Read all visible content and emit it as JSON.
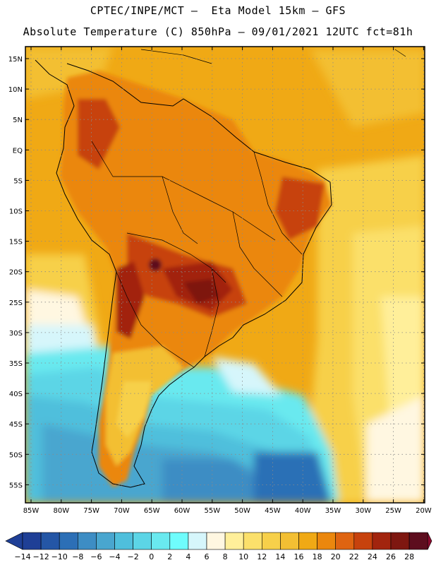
{
  "header": {
    "line1": "CPTEC/INPE/MCT –  Eta Model 15km – GFS",
    "line2": "Absolute Temperature (C) 850hPa – 09/01/2021 12UTC fct=81h"
  },
  "map": {
    "region": "South America",
    "lat_labels": [
      "15N",
      "10N",
      "5N",
      "EQ",
      "5S",
      "10S",
      "15S",
      "20S",
      "25S",
      "30S",
      "35S",
      "40S",
      "45S",
      "50S",
      "55S"
    ],
    "lon_labels": [
      "85W",
      "80W",
      "75W",
      "70W",
      "65W",
      "60W",
      "55W",
      "50W",
      "45W",
      "40W",
      "35W",
      "30W",
      "25W",
      "20W"
    ]
  },
  "legend": {
    "labels": [
      "-14",
      "-12",
      "-10",
      "-8",
      "-6",
      "-4",
      "-2",
      "0",
      "2",
      "4",
      "6",
      "8",
      "10",
      "12",
      "14",
      "16",
      "18",
      "20",
      "22",
      "24",
      "26",
      "28"
    ],
    "colors": [
      "#1f3f96",
      "#1f3f96",
      "#2456a6",
      "#2c6fb6",
      "#3d8dc4",
      "#49a6cf",
      "#4fbfdc",
      "#5cd5e6",
      "#69e9ef",
      "#6ffcfc",
      "#d6f6fb",
      "#fff7e1",
      "#ffef9a",
      "#fbe06b",
      "#f7d04a",
      "#f3bf33",
      "#f0a915",
      "#eb870d",
      "#df6411",
      "#c7420d",
      "#a2240e",
      "#7e1710",
      "#5d0d1e",
      "#8c0a2e"
    ]
  }
}
